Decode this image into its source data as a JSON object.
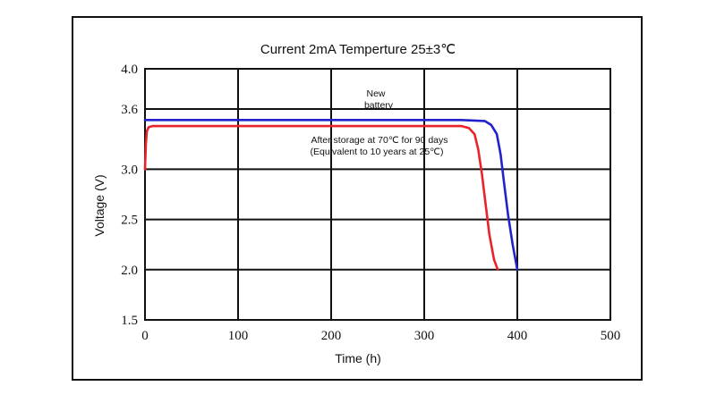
{
  "chart_data": {
    "type": "line",
    "title": "Current 2mA  Temperture 25±3℃",
    "xlabel": "Time (h)",
    "ylabel": "Voltage (V)",
    "xlim": [
      0,
      500
    ],
    "ylim": [
      1.5,
      4.0
    ],
    "xticks": [
      "0",
      "100",
      "200",
      "300",
      "400",
      "500"
    ],
    "yticks": [
      "4.0",
      "3.6",
      "3.0",
      "2.5",
      "2.0",
      "1.5"
    ],
    "grid": true,
    "series": [
      {
        "name": "New battery",
        "color": "#2222cc",
        "x": [
          0,
          2,
          5,
          100,
          200,
          300,
          340,
          365,
          372,
          378,
          382,
          386,
          390,
          395,
          400
        ],
        "y": [
          3.49,
          3.49,
          3.49,
          3.49,
          3.49,
          3.49,
          3.49,
          3.48,
          3.44,
          3.35,
          3.15,
          2.85,
          2.55,
          2.25,
          2.0
        ]
      },
      {
        "name": "After storage at 70℃ for 90 days (Equivalent to 10 years at 25℃)",
        "color": "#e8232a",
        "x": [
          0,
          1,
          2,
          4,
          8,
          15,
          100,
          200,
          300,
          340,
          348,
          354,
          358,
          362,
          366,
          370,
          375,
          379
        ],
        "y": [
          3.0,
          3.25,
          3.38,
          3.42,
          3.43,
          3.43,
          3.43,
          3.43,
          3.43,
          3.43,
          3.41,
          3.35,
          3.2,
          2.95,
          2.65,
          2.35,
          2.1,
          2.0
        ]
      }
    ],
    "annotations": {
      "new_line1": "New",
      "new_line2": "battery",
      "stored_line1": "After storage at 70℃ for 90 days",
      "stored_line2": "(Equivalent to 10 years at 25℃)"
    }
  }
}
